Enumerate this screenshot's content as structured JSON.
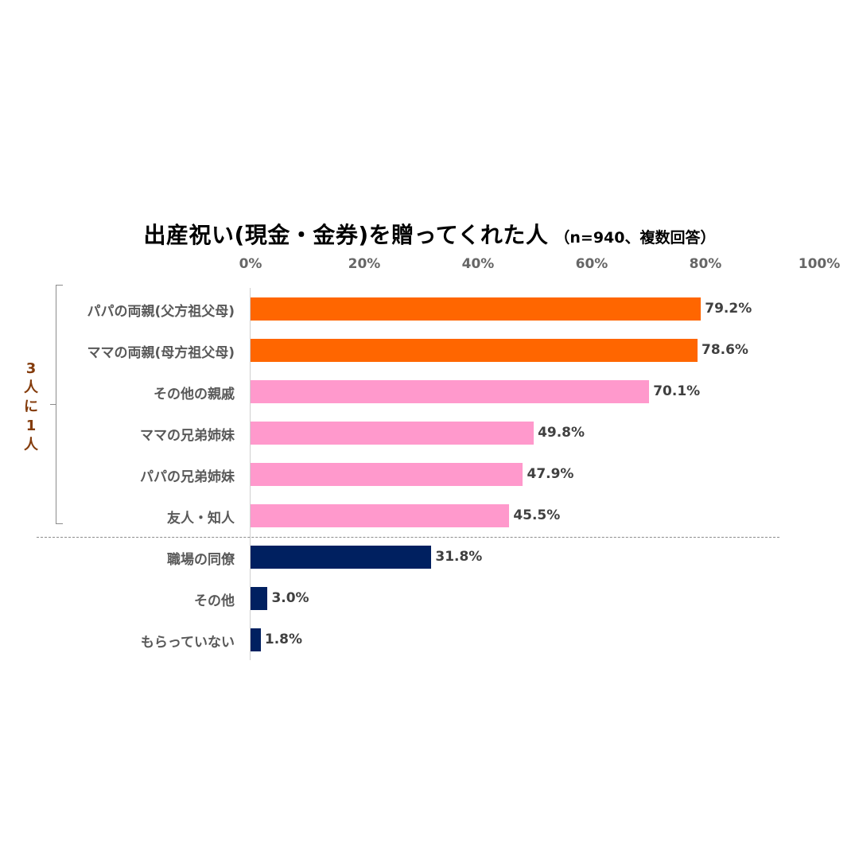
{
  "chart_data": {
    "type": "bar",
    "orientation": "horizontal",
    "title": "出産祝い(現金・金券)を贈ってくれた人",
    "subtitle": "（n=940、複数回答）",
    "xlabel": "",
    "ylabel": "",
    "xlim": [
      0,
      100
    ],
    "x_ticks": [
      "0%",
      "20%",
      "40%",
      "60%",
      "80%",
      "100%"
    ],
    "grid": false,
    "legend": null,
    "categories": [
      "パパの両親(父方祖父母)",
      "ママの両親(母方祖父母)",
      "その他の親戚",
      "ママの兄弟姉妹",
      "パパの兄弟姉妹",
      "友人・知人",
      "職場の同僚",
      "その他",
      "もらっていない"
    ],
    "values": [
      79.2,
      78.6,
      70.1,
      49.8,
      47.9,
      45.5,
      31.8,
      3.0,
      1.8
    ],
    "value_labels": [
      "79.2%",
      "78.6%",
      "70.1%",
      "49.8%",
      "47.9%",
      "45.5%",
      "31.8%",
      "3.0%",
      "1.8%"
    ],
    "bar_colors": [
      "#ff6600",
      "#ff6600",
      "#ff99cc",
      "#ff99cc",
      "#ff99cc",
      "#ff99cc",
      "#002060",
      "#002060",
      "#002060"
    ],
    "annotations": [
      {
        "text": "3人に1人",
        "type": "bracket",
        "applies_to": [
          "パパの両親(父方祖父母)",
          "ママの両親(母方祖父母)",
          "その他の親戚",
          "ママの兄弟姉妹",
          "パパの兄弟姉妹",
          "友人・知人"
        ],
        "color": "#843c0c"
      }
    ],
    "separator": "dashed line between 友人・知人 and 職場の同僚"
  },
  "title": {
    "main": "出産祝い(現金・金券)を贈ってくれた人",
    "sub": "（n=940、複数回答）"
  },
  "axis": {
    "ticks": [
      "0%",
      "20%",
      "40%",
      "60%",
      "80%",
      "100%"
    ]
  },
  "side_note": {
    "chars": [
      "3",
      "人",
      "に",
      "1",
      "人"
    ]
  }
}
